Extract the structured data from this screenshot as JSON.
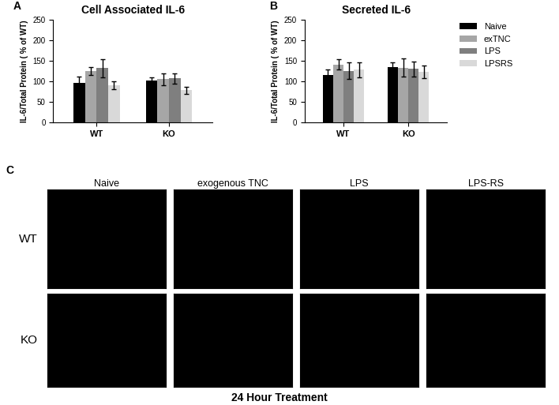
{
  "chart_data": [
    {
      "type": "bar",
      "title": "Cell Associated IL-6",
      "annotations": [
        "A"
      ],
      "y_label": "IL-6/Total Protein ( % of WT)",
      "categories": [
        "WT",
        "KO"
      ],
      "series": [
        {
          "name": "Naive",
          "color": "#000000",
          "values": [
            97,
            101
          ],
          "errors": [
            15,
            8
          ]
        },
        {
          "name": "exTNC",
          "color": "#a6a6a6",
          "values": [
            125,
            105
          ],
          "errors": [
            10,
            15
          ]
        },
        {
          "name": "LPS",
          "color": "#7f7f7f",
          "values": [
            132,
            107
          ],
          "errors": [
            22,
            12
          ]
        },
        {
          "name": "LPSRS",
          "color": "#d9d9d9",
          "values": [
            90,
            78
          ],
          "errors": [
            10,
            8
          ]
        }
      ],
      "ylim": [
        0,
        250
      ],
      "yticks": [
        0,
        50,
        100,
        150,
        200,
        250
      ]
    },
    {
      "type": "bar",
      "title": "Secreted IL-6",
      "annotations": [
        "B"
      ],
      "y_label": "IL-6/Total Protein ( % of WT)",
      "categories": [
        "WT",
        "KO"
      ],
      "series": [
        {
          "name": "Naive",
          "color": "#000000",
          "values": [
            116,
            135
          ],
          "errors": [
            13,
            12
          ]
        },
        {
          "name": "exTNC",
          "color": "#a6a6a6",
          "values": [
            141,
            133
          ],
          "errors": [
            12,
            22
          ]
        },
        {
          "name": "LPS",
          "color": "#7f7f7f",
          "values": [
            126,
            130
          ],
          "errors": [
            20,
            18
          ]
        },
        {
          "name": "LPSRS",
          "color": "#d9d9d9",
          "values": [
            128,
            123
          ],
          "errors": [
            18,
            15
          ]
        }
      ],
      "ylim": [
        0,
        250
      ],
      "yticks": [
        0,
        50,
        100,
        150,
        200,
        250
      ],
      "legend": "right"
    }
  ],
  "image_panel": {
    "annotations": [
      "C"
    ],
    "columns": [
      "Naive",
      "exogenous TNC",
      "LPS",
      "LPS-RS"
    ],
    "rows": [
      "WT",
      "KO"
    ],
    "caption": "24 Hour Treatment"
  }
}
